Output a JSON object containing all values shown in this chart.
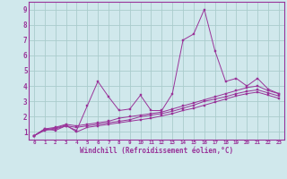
{
  "background_color": "#d0e8ec",
  "line_color": "#993399",
  "grid_color": "#aacccc",
  "xlabel": "Windchill (Refroidissement éolien,°C)",
  "xlim": [
    -0.5,
    23.5
  ],
  "ylim": [
    0.5,
    9.5
  ],
  "yticks": [
    1,
    2,
    3,
    4,
    5,
    6,
    7,
    8,
    9
  ],
  "xticks": [
    0,
    1,
    2,
    3,
    4,
    5,
    6,
    7,
    8,
    9,
    10,
    11,
    12,
    13,
    14,
    15,
    16,
    17,
    18,
    19,
    20,
    21,
    22,
    23
  ],
  "series1_x": [
    0,
    1,
    2,
    3,
    4,
    5,
    6,
    7,
    8,
    9,
    10,
    11,
    12,
    13,
    14,
    15,
    16,
    17,
    18,
    19,
    20,
    21,
    22,
    23
  ],
  "series1_y": [
    0.75,
    1.2,
    1.1,
    1.4,
    1.1,
    2.7,
    4.3,
    3.3,
    2.4,
    2.5,
    3.4,
    2.4,
    2.4,
    3.5,
    7.0,
    7.4,
    9.0,
    6.3,
    4.3,
    4.5,
    4.0,
    4.5,
    3.8,
    3.5
  ],
  "series2_x": [
    0,
    1,
    2,
    3,
    4,
    5,
    6,
    7,
    8,
    9,
    10,
    11,
    12,
    13,
    14,
    15,
    16,
    17,
    18,
    19,
    20,
    21,
    22,
    23
  ],
  "series2_y": [
    0.75,
    1.2,
    1.3,
    1.5,
    1.4,
    1.5,
    1.6,
    1.7,
    1.9,
    2.0,
    2.1,
    2.2,
    2.3,
    2.5,
    2.7,
    2.9,
    3.1,
    3.3,
    3.5,
    3.7,
    3.9,
    4.0,
    3.7,
    3.5
  ],
  "series3_x": [
    0,
    1,
    2,
    3,
    4,
    5,
    6,
    7,
    8,
    9,
    10,
    11,
    12,
    13,
    14,
    15,
    16,
    17,
    18,
    19,
    20,
    21,
    22,
    23
  ],
  "series3_y": [
    0.75,
    1.1,
    1.2,
    1.4,
    1.3,
    1.4,
    1.5,
    1.6,
    1.7,
    1.8,
    2.0,
    2.1,
    2.2,
    2.35,
    2.55,
    2.75,
    3.0,
    3.15,
    3.3,
    3.5,
    3.65,
    3.75,
    3.55,
    3.35
  ],
  "series4_x": [
    0,
    1,
    2,
    3,
    4,
    5,
    6,
    7,
    8,
    9,
    10,
    11,
    12,
    13,
    14,
    15,
    16,
    17,
    18,
    19,
    20,
    21,
    22,
    23
  ],
  "series4_y": [
    0.75,
    1.15,
    1.25,
    1.45,
    1.0,
    1.3,
    1.4,
    1.5,
    1.6,
    1.7,
    1.8,
    1.9,
    2.05,
    2.2,
    2.4,
    2.55,
    2.75,
    2.95,
    3.15,
    3.35,
    3.5,
    3.6,
    3.4,
    3.2
  ]
}
